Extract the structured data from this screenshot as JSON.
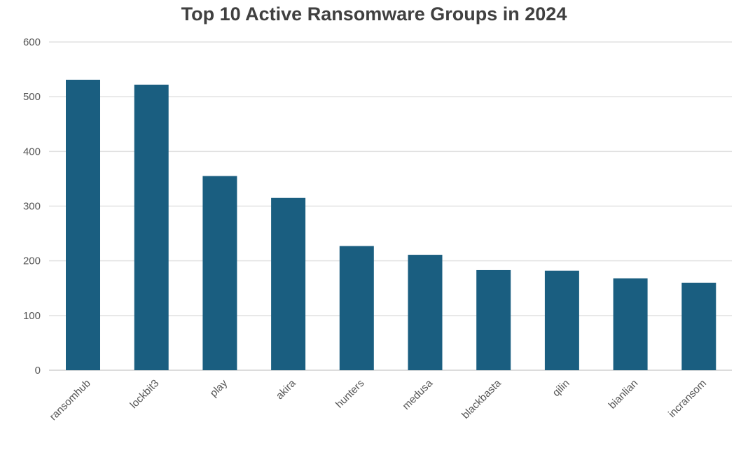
{
  "chart_data": {
    "type": "bar",
    "title": "Top 10 Active Ransomware Groups in 2024",
    "categories": [
      "ransomhub",
      "lockbit3",
      "play",
      "akira",
      "hunters",
      "medusa",
      "blackbasta",
      "qilin",
      "bianlian",
      "incransom"
    ],
    "values": [
      531,
      522,
      355,
      315,
      227,
      211,
      183,
      182,
      168,
      160
    ],
    "ylim": [
      0,
      600
    ],
    "yticks": [
      "0",
      "100",
      "200",
      "300",
      "400",
      "500",
      "600"
    ],
    "grid": true,
    "legend": "none",
    "bar_color": "#1a5e80"
  }
}
